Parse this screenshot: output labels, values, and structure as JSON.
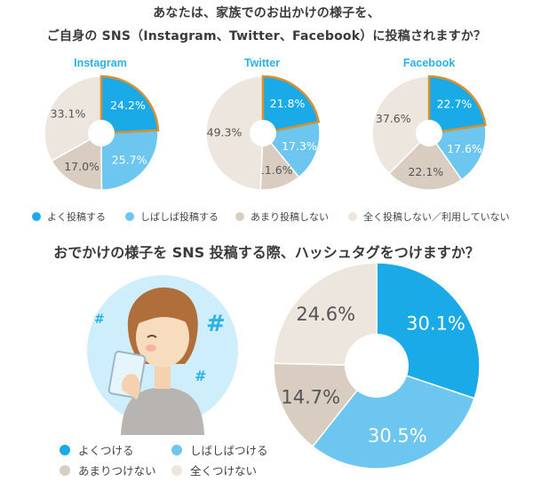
{
  "titles": {
    "q1_line1": "あなたは、家族でのお出かけの様子を、",
    "q1_line2": "ご自身の SNS（Instagram、Twitter、Facebook）に投稿されますか？",
    "q2": "おでかけの様子を SNS 投稿する際、ハッシュタグをつけますか？"
  },
  "colors": {
    "often": "#1aaae8",
    "sometimes": "#6cc6f0",
    "rarely": "#d9cdc1",
    "never": "#ede6df",
    "highlight_border": "#d9902f",
    "illustration_bg": "#cfeefb"
  },
  "legend_q1": [
    "よく投稿する",
    "しばしば投稿する",
    "あまり投稿しない",
    "全く投稿しない／利用していない"
  ],
  "legend_q2": [
    "よくつける",
    "しばしばつける",
    "あまりつけない",
    "全くつけない"
  ],
  "illustration": {
    "hash_symbol": "#"
  },
  "chart_data": [
    {
      "type": "pie",
      "title": "Instagram",
      "categories": [
        "よく投稿する",
        "しばしば投稿する",
        "あまり投稿しない",
        "全く投稿しない／利用していない"
      ],
      "values": [
        24.2,
        25.7,
        17.0,
        33.1
      ],
      "labels": [
        "24.2%",
        "25.7%",
        "17.0%",
        "33.1%"
      ]
    },
    {
      "type": "pie",
      "title": "Twitter",
      "categories": [
        "よく投稿する",
        "しばしば投稿する",
        "あまり投稿しない",
        "全く投稿しない／利用していない"
      ],
      "values": [
        21.8,
        17.3,
        11.6,
        49.3
      ],
      "labels": [
        "21.8%",
        "17.3%",
        "11.6%",
        "49.3%"
      ]
    },
    {
      "type": "pie",
      "title": "Facebook",
      "categories": [
        "よく投稿する",
        "しばしば投稿する",
        "あまり投稿しない",
        "全く投稿しない／利用していない"
      ],
      "values": [
        22.7,
        17.6,
        22.1,
        37.6
      ],
      "labels": [
        "22.7%",
        "17.6%",
        "22.1%",
        "37.6%"
      ]
    },
    {
      "type": "pie",
      "title": "",
      "categories": [
        "よくつける",
        "しばしばつける",
        "あまりつけない",
        "全くつけない"
      ],
      "values": [
        30.1,
        30.5,
        14.7,
        24.6
      ],
      "labels": [
        "30.1%",
        "30.5%",
        "14.7%",
        "24.6%"
      ]
    }
  ]
}
